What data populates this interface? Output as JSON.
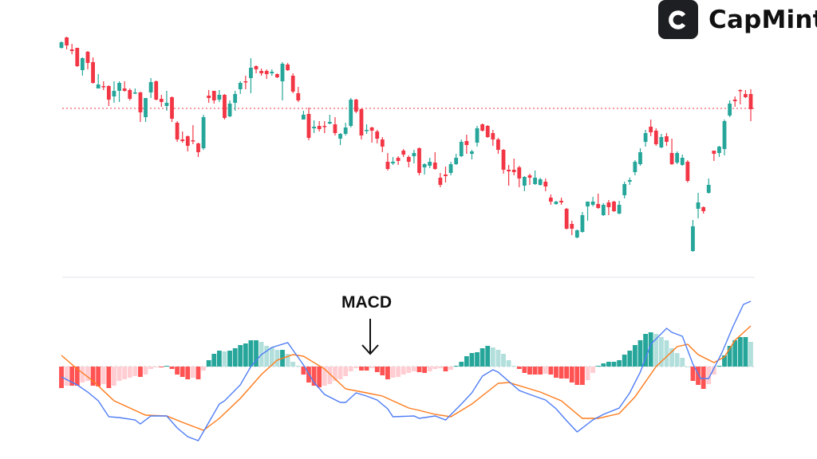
{
  "brand": {
    "name": "CapMint",
    "logo_letter": "C",
    "box_color": "#1e1f22"
  },
  "colors": {
    "up": "#26a69a",
    "down": "#f23645",
    "hist_up_strong": "#26a69a",
    "hist_up_weak": "#b2dfdb",
    "hist_down_strong": "#ff5252",
    "hist_down_weak": "#ffcdd2",
    "macd_line": "#4f7df5",
    "signal_line": "#ff7a1a",
    "reference_line": "#f23645",
    "separator": "#e0e3eb"
  },
  "chart_data": [
    {
      "type": "candlestick",
      "grid": false,
      "axes_visible": false,
      "reference_line": 264,
      "ylim": [
        84,
        360
      ],
      "ohlc_format": [
        "open",
        "high",
        "low",
        "close"
      ],
      "candles": [
        [
          340,
          348,
          339,
          347
        ],
        [
          353,
          354,
          338,
          343
        ],
        [
          338,
          345,
          332,
          336
        ],
        [
          340,
          340,
          316,
          317
        ],
        [
          312,
          328,
          305,
          327
        ],
        [
          335,
          336,
          313,
          321
        ],
        [
          322,
          328,
          295,
          296
        ],
        [
          289,
          307,
          289,
          294
        ],
        [
          292,
          298,
          287,
          291
        ],
        [
          292,
          293,
          267,
          275
        ],
        [
          279,
          298,
          271,
          286
        ],
        [
          286,
          298,
          272,
          296
        ],
        [
          289,
          298,
          285,
          286
        ],
        [
          287,
          289,
          274,
          276
        ],
        [
          283,
          289,
          282,
          284
        ],
        [
          284,
          285,
          247,
          259
        ],
        [
          253,
          277,
          247,
          277
        ],
        [
          284,
          302,
          277,
          297
        ],
        [
          298,
          299,
          274,
          275
        ],
        [
          276,
          281,
          266,
          272
        ],
        [
          267,
          286,
          261,
          271
        ],
        [
          278,
          279,
          247,
          251
        ],
        [
          246,
          248,
          222,
          225
        ],
        [
          225,
          235,
          221,
          223
        ],
        [
          229,
          230,
          210,
          217
        ],
        [
          224,
          243,
          219,
          223
        ],
        [
          220,
          221,
          203,
          209
        ],
        [
          214,
          256,
          212,
          253
        ],
        [
          280,
          287,
          271,
          277
        ],
        [
          286,
          286,
          270,
          274
        ],
        [
          275,
          287,
          272,
          281
        ],
        [
          281,
          282,
          250,
          252
        ],
        [
          254,
          274,
          253,
          270
        ],
        [
          271,
          286,
          261,
          282
        ],
        [
          288,
          298,
          282,
          296
        ],
        [
          298,
          305,
          288,
          297
        ],
        [
          302,
          327,
          283,
          315
        ],
        [
          317,
          318,
          308,
          313
        ],
        [
          311,
          314,
          305,
          308
        ],
        [
          311,
          313,
          301,
          307
        ],
        [
          308,
          313,
          305,
          310
        ],
        [
          307,
          308,
          302,
          303
        ],
        [
          298,
          322,
          274,
          320
        ],
        [
          319,
          321,
          311,
          312
        ],
        [
          305,
          308,
          283,
          285
        ],
        [
          283,
          291,
          272,
          274
        ],
        [
          250,
          261,
          250,
          256
        ],
        [
          257,
          265,
          224,
          227
        ],
        [
          239,
          249,
          233,
          241
        ],
        [
          242,
          248,
          235,
          238
        ],
        [
          242,
          248,
          233,
          241
        ],
        [
          245,
          256,
          244,
          247
        ],
        [
          244,
          253,
          230,
          233
        ],
        [
          226,
          233,
          218,
          232
        ],
        [
          232,
          246,
          230,
          240
        ],
        [
          242,
          277,
          240,
          275
        ],
        [
          275,
          276,
          258,
          260
        ],
        [
          263,
          264,
          225,
          230
        ],
        [
          236,
          244,
          232,
          237
        ],
        [
          240,
          241,
          221,
          236
        ],
        [
          235,
          237,
          220,
          226
        ],
        [
          225,
          228,
          209,
          216
        ],
        [
          197,
          208,
          186,
          188
        ],
        [
          195,
          203,
          193,
          197
        ],
        [
          202,
          204,
          193,
          198
        ],
        [
          211,
          213,
          203,
          206
        ],
        [
          203,
          205,
          190,
          197
        ],
        [
          204,
          212,
          195,
          208
        ],
        [
          214,
          215,
          180,
          183
        ],
        [
          190,
          195,
          181,
          194
        ],
        [
          192,
          202,
          189,
          197
        ],
        [
          196,
          209,
          187,
          188
        ],
        [
          177,
          183,
          165,
          168
        ],
        [
          181,
          191,
          171,
          179
        ],
        [
          183,
          197,
          180,
          194
        ],
        [
          194,
          207,
          193,
          202
        ],
        [
          204,
          225,
          203,
          222
        ],
        [
          223,
          231,
          207,
          218
        ],
        [
          207,
          212,
          200,
          210
        ],
        [
          221,
          242,
          216,
          239
        ],
        [
          244,
          245,
          235,
          236
        ],
        [
          242,
          243,
          227,
          228
        ],
        [
          233,
          237,
          217,
          225
        ],
        [
          225,
          227,
          207,
          212
        ],
        [
          212,
          213,
          182,
          187
        ],
        [
          187,
          193,
          167,
          185
        ],
        [
          187,
          201,
          180,
          184
        ],
        [
          190,
          192,
          165,
          176
        ],
        [
          167,
          179,
          160,
          178
        ],
        [
          180,
          182,
          168,
          177
        ],
        [
          169,
          186,
          168,
          177
        ],
        [
          168,
          177,
          167,
          175
        ],
        [
          172,
          176,
          160,
          166
        ],
        [
          152,
          156,
          143,
          147
        ],
        [
          144,
          148,
          143,
          147
        ],
        [
          148,
          152,
          143,
          146
        ],
        [
          138,
          139,
          112,
          113
        ],
        [
          119,
          123,
          105,
          113
        ],
        [
          102,
          112,
          101,
          111
        ],
        [
          109,
          134,
          108,
          130
        ],
        [
          141,
          147,
          123,
          147
        ],
        [
          143,
          153,
          141,
          147
        ],
        [
          144,
          157,
          138,
          139
        ],
        [
          130,
          145,
          129,
          143
        ],
        [
          146,
          149,
          130,
          140
        ],
        [
          147,
          148,
          134,
          135
        ],
        [
          132,
          148,
          131,
          143
        ],
        [
          155,
          172,
          151,
          169
        ],
        [
          172,
          177,
          168,
          174
        ],
        [
          184,
          199,
          180,
          197
        ],
        [
          194,
          214,
          192,
          209
        ],
        [
          222,
          237,
          216,
          233
        ],
        [
          241,
          250,
          229,
          234
        ],
        [
          236,
          239,
          217,
          219
        ],
        [
          215,
          232,
          214,
          228
        ],
        [
          229,
          233,
          217,
          222
        ],
        [
          208,
          226,
          193,
          194
        ],
        [
          196,
          210,
          194,
          208
        ],
        [
          193,
          206,
          192,
          202
        ],
        [
          197,
          199,
          171,
          173
        ],
        [
          85,
          124,
          84,
          116
        ],
        [
          138,
          158,
          126,
          146
        ],
        [
          140,
          141,
          132,
          135
        ],
        [
          158,
          176,
          157,
          168
        ],
        [
          211,
          211,
          198,
          207
        ],
        [
          208,
          217,
          203,
          216
        ],
        [
          213,
          250,
          205,
          248
        ],
        [
          255,
          274,
          253,
          270
        ],
        [
          275,
          279,
          266,
          273
        ],
        [
          287,
          288,
          269,
          286
        ],
        [
          282,
          287,
          277,
          278
        ],
        [
          282,
          288,
          248,
          263
        ]
      ]
    },
    {
      "type": "bar+line",
      "annotation": "MACD",
      "grid": false,
      "axes_visible": false,
      "ylim": [
        -9.5,
        8.5
      ],
      "histogram": [
        -2.7,
        -2.4,
        -2.4,
        -2.4,
        -2.0,
        -1.8,
        -2.4,
        -2.5,
        -2.2,
        -2.7,
        -2.4,
        -1.8,
        -1.6,
        -1.4,
        -1.2,
        -1.3,
        -1.0,
        -0.3,
        -0.1,
        -0.1,
        0.1,
        -0.3,
        -1.0,
        -1.3,
        -1.6,
        -1.4,
        -1.6,
        -0.5,
        0.8,
        1.6,
        2.0,
        1.9,
        2.0,
        2.3,
        2.7,
        2.9,
        3.3,
        3.3,
        3.1,
        2.6,
        2.4,
        2.1,
        2.1,
        1.6,
        0.6,
        0.1,
        -1.0,
        -2.0,
        -2.4,
        -2.6,
        -2.4,
        -2.2,
        -1.8,
        -1.6,
        -1.2,
        -0.6,
        -0.2,
        -0.5,
        -0.5,
        -0.2,
        -0.7,
        -1.1,
        -1.6,
        -1.4,
        -1.3,
        -1.0,
        -0.8,
        -0.6,
        -0.7,
        -0.8,
        -0.6,
        -0.3,
        -0.2,
        -0.6,
        -0.4,
        0.1,
        0.6,
        1.3,
        1.7,
        1.8,
        2.3,
        2.6,
        2.4,
        2.1,
        1.6,
        0.8,
        0.1,
        -0.3,
        -0.8,
        -1.0,
        -1.0,
        -1.0,
        -0.9,
        -1.0,
        -1.4,
        -1.5,
        -1.5,
        -2.0,
        -2.3,
        -2.3,
        -1.7,
        -0.8,
        0.1,
        0.4,
        0.6,
        0.6,
        0.8,
        1.5,
        2.0,
        2.7,
        3.3,
        4.1,
        4.3,
        4.1,
        3.7,
        3.3,
        2.3,
        1.7,
        1.1,
        0.0,
        -1.8,
        -2.3,
        -2.8,
        -2.2,
        -1.0,
        0.1,
        1.4,
        2.6,
        3.3,
        3.7,
        3.7,
        3.1
      ],
      "macd": {
        "index": [
          0,
          3,
          5,
          7,
          9,
          11,
          14,
          15,
          17,
          20,
          22,
          24,
          26,
          28,
          30,
          31,
          34,
          36,
          38,
          40,
          43,
          46,
          48,
          50,
          53,
          54,
          56,
          58,
          60,
          62,
          63,
          67,
          68,
          71,
          73,
          76,
          78,
          80,
          82,
          83,
          87,
          89,
          92,
          94,
          96,
          98,
          101,
          103,
          106,
          108,
          110,
          112,
          115,
          116,
          118,
          120,
          121.5,
          123,
          125.5,
          127.6,
          129.6,
          131
        ],
        "values": [
          -1.3,
          -2.3,
          -3.2,
          -4.3,
          -6.3,
          -6.4,
          -6.7,
          -7.2,
          -6.2,
          -6.2,
          -7.7,
          -8.8,
          -9.3,
          -7.0,
          -4.7,
          -4.3,
          -2.3,
          0.0,
          1.5,
          2.4,
          3.0,
          0.2,
          -2.0,
          -3.5,
          -4.5,
          -4.5,
          -3.3,
          -3.7,
          -4.2,
          -5.3,
          -6.3,
          -6.2,
          -6.5,
          -6.2,
          -6.7,
          -4.7,
          -3.3,
          -1.2,
          -0.4,
          -0.7,
          -3.0,
          -3.5,
          -4.2,
          -5.3,
          -6.8,
          -8.2,
          -6.7,
          -6.0,
          -5.2,
          -3.3,
          -0.7,
          2.8,
          4.8,
          4.3,
          3.8,
          0.3,
          -1.5,
          -1.5,
          1.7,
          5.0,
          7.8,
          8.2
        ]
      },
      "signal": {
        "index": [
          0,
          3,
          6,
          10,
          14,
          16,
          20,
          23,
          27,
          30,
          34,
          38,
          41,
          44,
          46,
          50,
          54,
          58,
          61,
          66,
          68,
          71,
          74,
          78,
          83,
          85,
          91,
          95,
          99,
          102,
          106,
          109,
          113,
          117,
          119,
          121,
          124,
          126,
          128,
          131
        ],
        "values": [
          1.4,
          -0.3,
          -1.8,
          -4.3,
          -5.5,
          -6.1,
          -6.2,
          -7.0,
          -8.0,
          -6.5,
          -4.0,
          -1.0,
          0.8,
          1.5,
          1.3,
          -0.3,
          -2.8,
          -3.3,
          -3.7,
          -5.2,
          -5.5,
          -6.0,
          -6.3,
          -4.7,
          -2.1,
          -2.0,
          -3.2,
          -4.3,
          -6.5,
          -6.5,
          -5.9,
          -3.8,
          0.0,
          2.5,
          2.8,
          1.5,
          0.5,
          1.2,
          3.3,
          5.1
        ]
      }
    }
  ]
}
